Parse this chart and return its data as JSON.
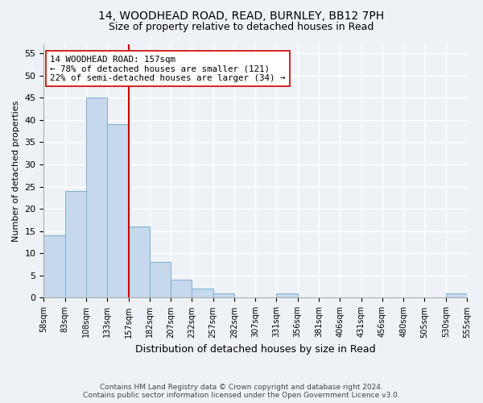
{
  "title1": "14, WOODHEAD ROAD, READ, BURNLEY, BB12 7PH",
  "title2": "Size of property relative to detached houses in Read",
  "xlabel": "Distribution of detached houses by size in Read",
  "ylabel": "Number of detached properties",
  "bar_values": [
    14,
    24,
    45,
    39,
    16,
    8,
    4,
    2,
    1,
    0,
    0,
    1,
    0,
    0,
    0,
    0,
    0,
    0,
    0,
    1
  ],
  "bin_edges": [
    0,
    1,
    2,
    3,
    4,
    5,
    6,
    7,
    8,
    9,
    10,
    11,
    12,
    13,
    14,
    15,
    16,
    17,
    18,
    19,
    20
  ],
  "tick_labels": [
    "58sqm",
    "83sqm",
    "108sqm",
    "133sqm",
    "157sqm",
    "182sqm",
    "207sqm",
    "232sqm",
    "257sqm",
    "282sqm",
    "307sqm",
    "331sqm",
    "356sqm",
    "381sqm",
    "406sqm",
    "431sqm",
    "456sqm",
    "480sqm",
    "505sqm",
    "530sqm",
    "555sqm"
  ],
  "bar_color": "#c5d8ec",
  "bar_edge_color": "#7aafd4",
  "reference_line_x": 4.0,
  "reference_line_color": "#cc0000",
  "annotation_title": "14 WOODHEAD ROAD: 157sqm",
  "annotation_line1": "← 78% of detached houses are smaller (121)",
  "annotation_line2": "22% of semi-detached houses are larger (34) →",
  "annotation_box_facecolor": "#ffffff",
  "annotation_box_edgecolor": "#cc0000",
  "ylim": [
    0,
    57
  ],
  "yticks": [
    0,
    5,
    10,
    15,
    20,
    25,
    30,
    35,
    40,
    45,
    50,
    55
  ],
  "footer1": "Contains HM Land Registry data © Crown copyright and database right 2024.",
  "footer2": "Contains public sector information licensed under the Open Government Licence v3.0.",
  "bg_color": "#eef2f7",
  "grid_color": "#ffffff",
  "title1_fontsize": 10,
  "title2_fontsize": 9
}
